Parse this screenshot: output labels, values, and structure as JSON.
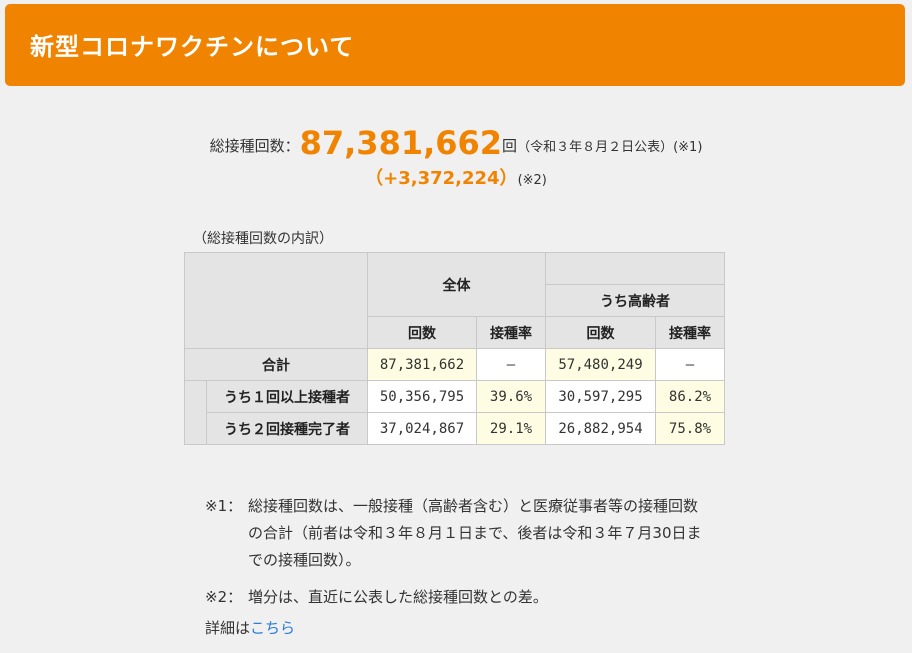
{
  "banner": {
    "title": "新型コロナワクチンについて",
    "color": "#f08300"
  },
  "summary": {
    "label": "総接種回数：",
    "total": "87,381,662",
    "unit": "回",
    "published": "（令和３年８月２日公表）",
    "note_ref1": "(※1)",
    "diff": "（+3,372,224）",
    "note_ref2": "(※2)"
  },
  "table": {
    "caption": "（総接種回数の内訳）",
    "headers": {
      "all": "全体",
      "elderly": "うち高齢者",
      "count": "回数",
      "rate": "接種率"
    },
    "rows": [
      {
        "label": "合計",
        "all_count": "87,381,662",
        "all_rate": "—",
        "elderly_count": "57,480,249",
        "elderly_rate": "—"
      },
      {
        "label": "うち１回以上接種者",
        "all_count": "50,356,795",
        "all_rate": "39.6%",
        "elderly_count": "30,597,295",
        "elderly_rate": "86.2%"
      },
      {
        "label": "うち２回接種完了者",
        "all_count": "37,024,867",
        "all_rate": "29.1%",
        "elderly_count": "26,882,954",
        "elderly_rate": "75.8%"
      }
    ]
  },
  "notes": [
    {
      "mark": "※1：",
      "text": "総接種回数は、一般接種（高齢者含む）と医療従事者等の接種回数の合計（前者は令和３年８月１日まで、後者は令和３年７月30日までの接種回数）。"
    },
    {
      "mark": "※2：",
      "text": "増分は、直近に公表した総接種回数との差。"
    }
  ],
  "detail": {
    "prefix": "詳細は",
    "link_label": "こちら",
    "link_color": "#2b7bd8"
  }
}
